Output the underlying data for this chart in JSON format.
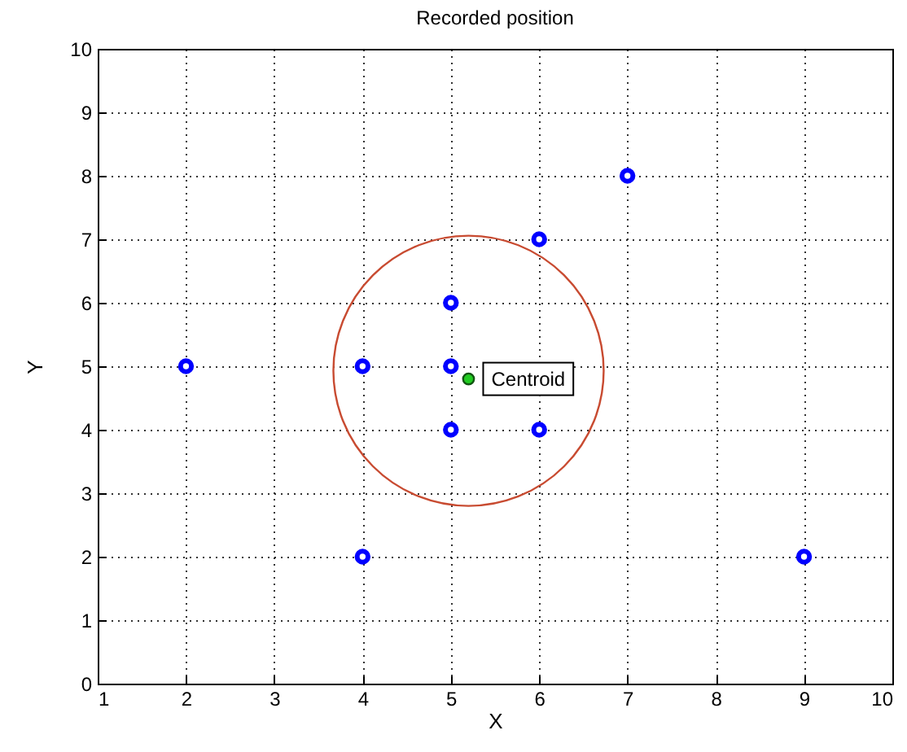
{
  "chart_data": {
    "type": "scatter",
    "title": "Recorded position",
    "xlabel": "X",
    "ylabel": "Y",
    "xlim": [
      1,
      10
    ],
    "xticks": [
      1,
      2,
      3,
      4,
      5,
      6,
      7,
      8,
      9,
      10
    ],
    "ylim": [
      0,
      10
    ],
    "yticks": [
      0,
      1,
      2,
      3,
      4,
      5,
      6,
      7,
      8,
      9,
      10
    ],
    "grid": true,
    "marker": "circle",
    "series": [
      {
        "type": "scatter",
        "color": "#0000ff",
        "x": [
          2,
          4,
          4,
          5,
          5,
          5,
          6,
          6,
          7,
          9
        ],
        "values": [
          5,
          5,
          2,
          6,
          5,
          4,
          7,
          4,
          8,
          2
        ]
      },
      {
        "type": "scatter",
        "color": "#22cc22",
        "x": [
          5.2
        ],
        "values": [
          4.8
        ]
      }
    ],
    "annotations": [
      {
        "text": "Centroid",
        "x": 5.2,
        "y": 4.8
      }
    ]
  }
}
